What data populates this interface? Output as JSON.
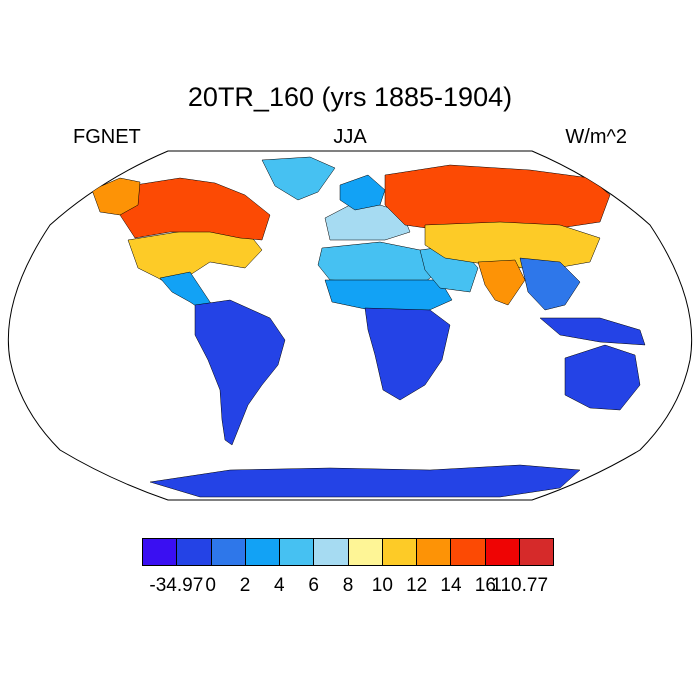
{
  "title": "20TR_160 (yrs 1885-1904)",
  "subtitle_left": "FGNET",
  "subtitle_center": "JJA",
  "subtitle_right": "W/m^2",
  "projection": "Robinson",
  "colorbar": {
    "colors": [
      "#3a0ff2",
      "#2443e6",
      "#2e77ea",
      "#12a2f5",
      "#46c1f2",
      "#a6dbf2",
      "#fef596",
      "#fdcb27",
      "#fd9306",
      "#fc4a04",
      "#ef0404",
      "#d62a2a"
    ],
    "labels": [
      "-34.97",
      "0",
      "2",
      "4",
      "6",
      "8",
      "10",
      "12",
      "14",
      "16",
      "110.77"
    ]
  },
  "regions": [
    {
      "name": "north-america-south",
      "color": "#fdcb27"
    },
    {
      "name": "north-america-north",
      "color": "#fc4a04"
    },
    {
      "name": "alaska",
      "color": "#fd9306"
    },
    {
      "name": "greenland",
      "color": "#46c1f2"
    },
    {
      "name": "central-america",
      "color": "#12a2f5"
    },
    {
      "name": "south-america",
      "color": "#2443e6"
    },
    {
      "name": "europe",
      "color": "#a6dbf2"
    },
    {
      "name": "scandinavia",
      "color": "#12a2f5"
    },
    {
      "name": "north-africa",
      "color": "#46c1f2"
    },
    {
      "name": "sahel",
      "color": "#12a2f5"
    },
    {
      "name": "central-south-africa",
      "color": "#2443e6"
    },
    {
      "name": "arabia",
      "color": "#46c1f2"
    },
    {
      "name": "siberia",
      "color": "#fc4a04"
    },
    {
      "name": "central-asia",
      "color": "#fdcb27"
    },
    {
      "name": "india",
      "color": "#fd9306"
    },
    {
      "name": "southeast-asia",
      "color": "#2e77ea"
    },
    {
      "name": "indonesia",
      "color": "#2443e6"
    },
    {
      "name": "australia",
      "color": "#2443e6"
    },
    {
      "name": "antarctica",
      "color": "#2443e6"
    }
  ]
}
